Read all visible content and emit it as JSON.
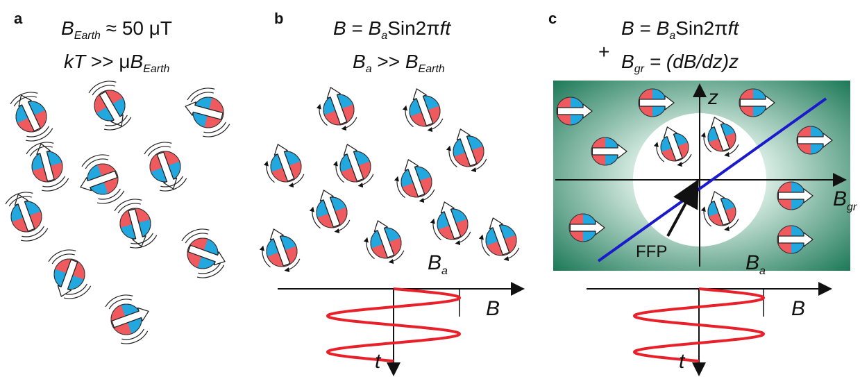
{
  "panels": {
    "a": {
      "letter": "a",
      "line1": {
        "B": "B",
        "sub": "Earth",
        "rest": " ≈ 50 μT"
      },
      "line2": {
        "kT": "kT",
        "rest": " >> μ",
        "B": "B",
        "sub": "Earth"
      }
    },
    "b": {
      "letter": "b",
      "line1": {
        "B": "B",
        "eq": " = ",
        "Ba": "B",
        "asub": "a",
        "sin": "Sin2π",
        "ft": "ft"
      },
      "line2": {
        "B": "B",
        "asub": "a",
        "mid": " >> ",
        "B2": "B",
        "sub": "Earth"
      },
      "label_Ba": {
        "B": "B",
        "sub": "a"
      },
      "axis_B": "B",
      "axis_t": "t"
    },
    "c": {
      "letter": "c",
      "line1": {
        "B": "B",
        "eq": " = ",
        "Ba": "B",
        "asub": "a",
        "sin": "Sin2π",
        "ft": "ft"
      },
      "plus": "+",
      "line2": {
        "B": "B",
        "sub": "gr",
        "rest": " = (dB/dz)z"
      },
      "label_z": "z",
      "label_Bgr": {
        "B": "B",
        "sub": "gr"
      },
      "label_FFP": "FFP",
      "label_Ba": {
        "B": "B",
        "sub": "a"
      },
      "axis_B": "B",
      "axis_t": "t"
    }
  },
  "colors": {
    "particle_red": "#ee5a5e",
    "particle_blue": "#22a7df",
    "field_green": "#1f7a5a",
    "gradient_line": "#1a1acc",
    "sine": "#e8202a"
  },
  "particles": {
    "a_arrow_angles_deg": [
      -115,
      60,
      195,
      -105,
      160,
      70,
      -110,
      75,
      20,
      110,
      -20,
      95
    ],
    "b_arrow_angle_deg": -110,
    "c_arrow_angle_deg": 0
  }
}
